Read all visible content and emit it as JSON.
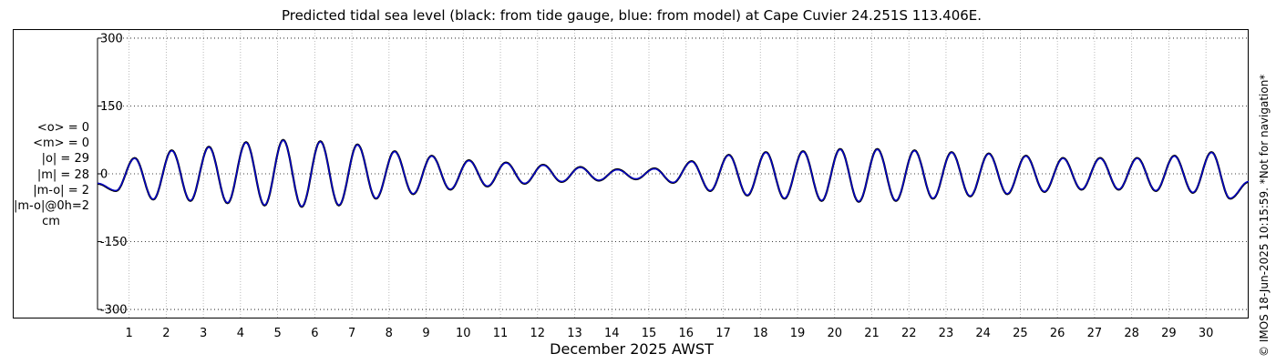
{
  "chart_data": {
    "type": "line",
    "title": "Predicted tidal sea level (black: from tide gauge, blue: from model) at Cape Cuvier 24.251S 113.406E.",
    "xlabel": "December 2025 AWST",
    "ylabel": "",
    "ylim": [
      -320,
      320
    ],
    "xlim": [
      0.15,
      31.15
    ],
    "yticks": [
      300,
      150,
      0,
      -150,
      -300
    ],
    "yticklabels": [
      "300",
      "150",
      "0",
      "-150",
      "-300"
    ],
    "xticks": [
      1,
      2,
      3,
      4,
      5,
      6,
      7,
      8,
      9,
      10,
      11,
      12,
      13,
      14,
      15,
      16,
      17,
      18,
      19,
      20,
      21,
      22,
      23,
      24,
      25,
      26,
      27,
      28,
      29,
      30
    ],
    "grid": true,
    "units": "cm",
    "series": [
      {
        "name": "tide gauge",
        "color": "#000000",
        "x": [
          0.15,
          0.65,
          1.15,
          1.65,
          2.15,
          2.65,
          3.15,
          3.65,
          4.15,
          4.65,
          5.15,
          5.65,
          6.15,
          6.65,
          7.15,
          7.65,
          8.15,
          8.65,
          9.15,
          9.65,
          10.15,
          10.65,
          11.15,
          11.65,
          12.15,
          12.65,
          13.15,
          13.65,
          14.15,
          14.65,
          15.15,
          15.65,
          16.15,
          16.65,
          17.15,
          17.65,
          18.15,
          18.65,
          19.15,
          19.65,
          20.15,
          20.65,
          21.15,
          21.65,
          22.15,
          22.65,
          23.15,
          23.65,
          24.15,
          24.65,
          25.15,
          25.65,
          26.15,
          26.65,
          27.15,
          27.65,
          28.15,
          28.65,
          29.15,
          29.65,
          30.15,
          30.65,
          31.15
        ],
        "y": [
          -22,
          -38,
          35,
          -57,
          52,
          -60,
          60,
          -65,
          70,
          -70,
          75,
          -73,
          72,
          -70,
          65,
          -55,
          50,
          -45,
          40,
          -35,
          30,
          -28,
          25,
          -22,
          20,
          -18,
          15,
          -15,
          10,
          -12,
          12,
          -20,
          28,
          -38,
          42,
          -48,
          48,
          -55,
          50,
          -60,
          55,
          -62,
          55,
          -60,
          52,
          -55,
          48,
          -50,
          45,
          -45,
          40,
          -40,
          35,
          -35,
          35,
          -35,
          35,
          -38,
          40,
          -42,
          48,
          -55,
          -18
        ]
      },
      {
        "name": "model",
        "color": "#0000cc",
        "x": [
          0.15,
          0.65,
          1.15,
          1.65,
          2.15,
          2.65,
          3.15,
          3.65,
          4.15,
          4.65,
          5.15,
          5.65,
          6.15,
          6.65,
          7.15,
          7.65,
          8.15,
          8.65,
          9.15,
          9.65,
          10.15,
          10.65,
          11.15,
          11.65,
          12.15,
          12.65,
          13.15,
          13.65,
          14.15,
          14.65,
          15.15,
          15.65,
          16.15,
          16.65,
          17.15,
          17.65,
          18.15,
          18.65,
          19.15,
          19.65,
          20.15,
          20.65,
          21.15,
          21.65,
          22.15,
          22.65,
          23.15,
          23.65,
          24.15,
          24.65,
          25.15,
          25.65,
          26.15,
          26.65,
          27.15,
          27.65,
          28.15,
          28.65,
          29.15,
          29.65,
          30.15,
          30.65,
          31.15
        ],
        "y": [
          -21,
          -37,
          34,
          -56,
          51,
          -59,
          59,
          -64,
          69,
          -69,
          74,
          -72,
          71,
          -69,
          64,
          -54,
          49,
          -44,
          39,
          -34,
          29,
          -27,
          24,
          -21,
          19,
          -17,
          14,
          -14,
          9,
          -11,
          11,
          -19,
          27,
          -37,
          41,
          -47,
          47,
          -54,
          49,
          -59,
          54,
          -61,
          54,
          -59,
          51,
          -54,
          47,
          -49,
          44,
          -44,
          39,
          -39,
          34,
          -34,
          34,
          -34,
          34,
          -37,
          39,
          -41,
          47,
          -54,
          -17
        ]
      }
    ]
  },
  "stats": {
    "mean_obs": "<o> = 0",
    "mean_model": "<m> = 0",
    "abs_obs": "|o| = 29",
    "abs_model": "|m| = 28",
    "abs_diff": "|m-o| = 2",
    "abs_diff_0h": "|m-o|@0h=2",
    "units": "cm"
  },
  "footer": "© IMOS 18-Jun-2025 10:15:59. *Not for navigation*",
  "colors": {
    "gauge": "#000000",
    "model": "#0000cc",
    "grid": "#aaaaaa"
  }
}
